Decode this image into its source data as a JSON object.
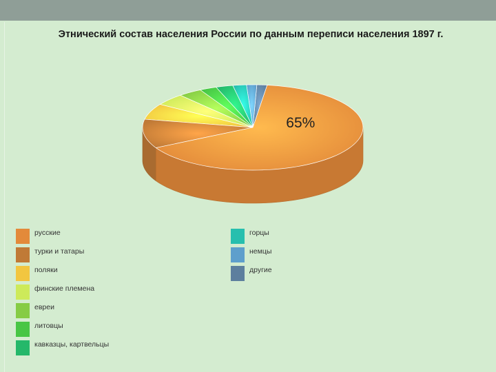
{
  "slide": {
    "title": "Этнический состав населения России по данным переписи населения 1897 г."
  },
  "chart_data": {
    "type": "pie",
    "title": "Этнический состав населения России по данным переписи населения 1897 г.",
    "slices": [
      {
        "label": "русские",
        "value": 65,
        "color": "#e38a3a"
      },
      {
        "label": "турки и татары",
        "value": 11,
        "color": "#c07a36"
      },
      {
        "label": "поляки",
        "value": 6,
        "color": "#f2c640"
      },
      {
        "label": "финские племена",
        "value": 4.5,
        "color": "#cdea5a"
      },
      {
        "label": "евреи",
        "value": 3.5,
        "color": "#86cc45"
      },
      {
        "label": "литовцы",
        "value": 2.5,
        "color": "#48c645"
      },
      {
        "label": "кавказцы, картвельцы",
        "value": 2.5,
        "color": "#25b86a"
      },
      {
        "label": "горцы",
        "value": 2,
        "color": "#27bfae"
      },
      {
        "label": "немцы",
        "value": 1.5,
        "color": "#5e9fcc"
      },
      {
        "label": "другие",
        "value": 1.5,
        "color": "#5d7f9e"
      }
    ],
    "data_labels": [
      {
        "text": "65%",
        "slice": "русские"
      }
    ],
    "legend_position": "bottom",
    "style": "3d"
  }
}
